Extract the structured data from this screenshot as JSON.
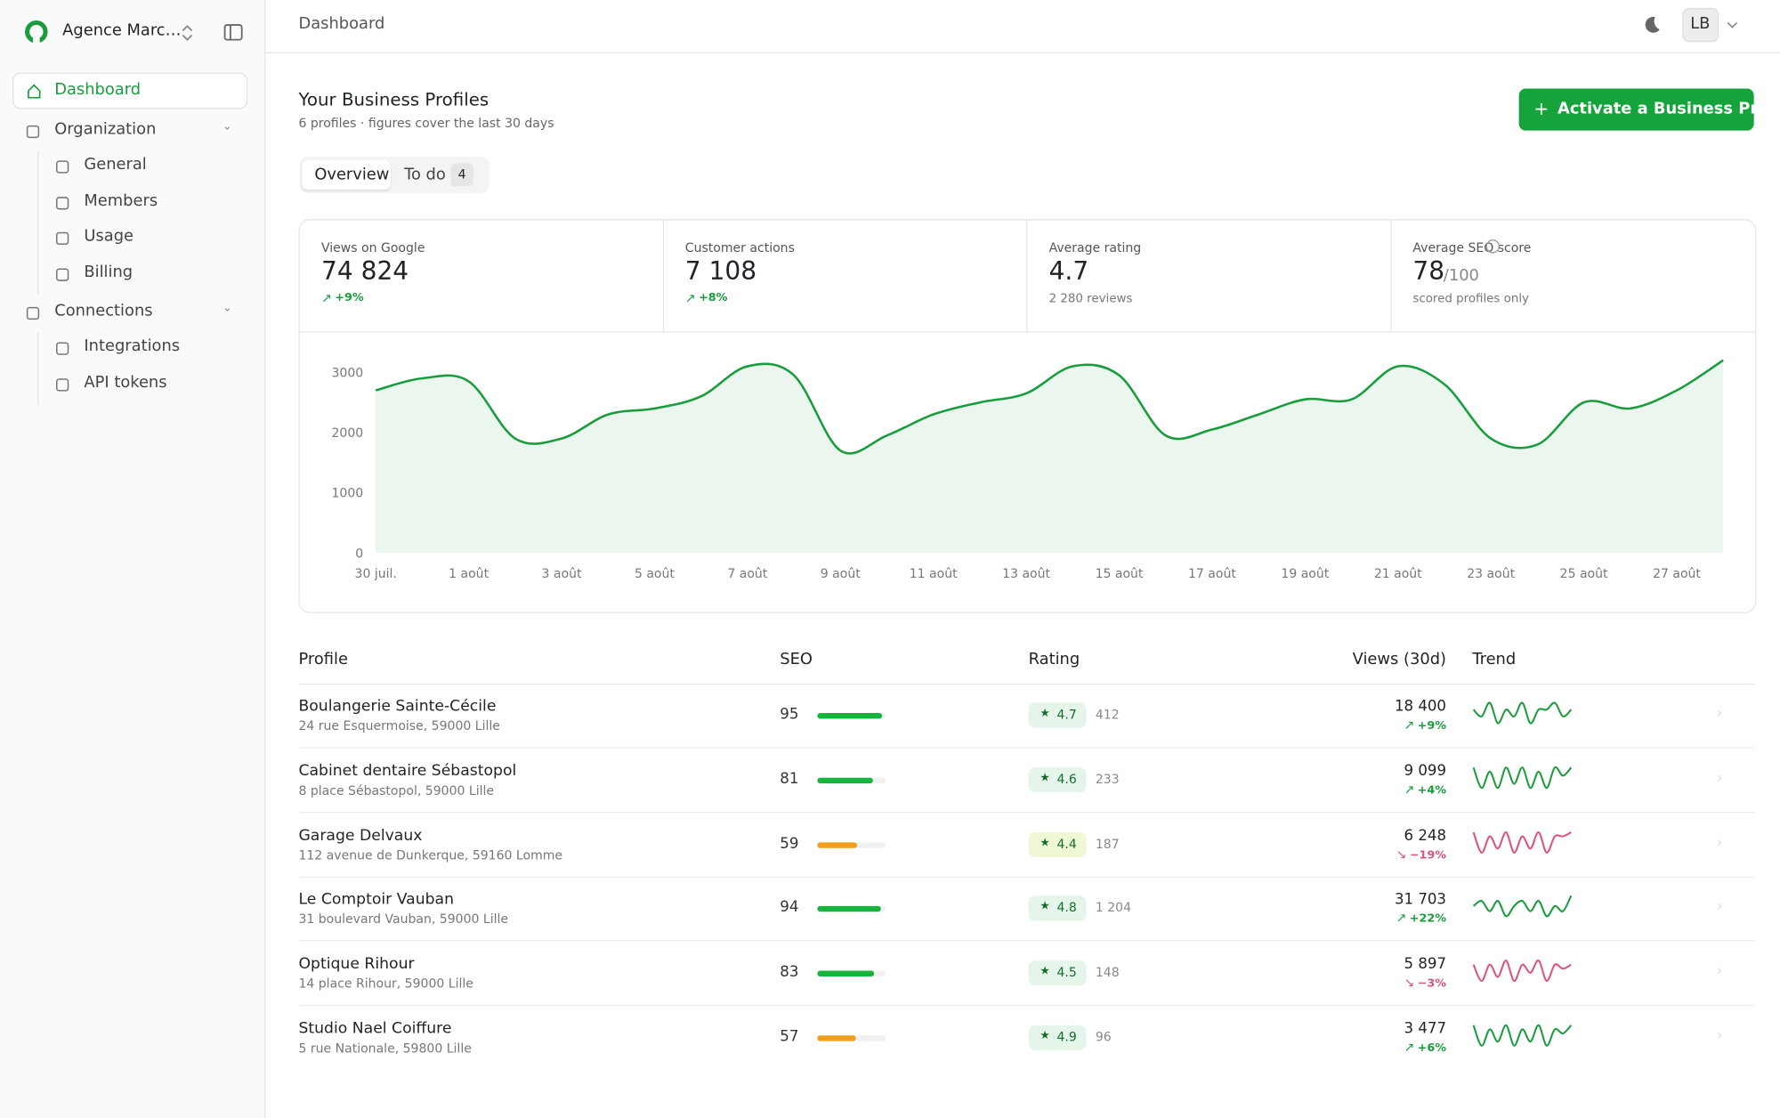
{
  "sidebar": {
    "workspace": "Agence Marc…",
    "dashboard": "Dashboard",
    "groups": [
      {
        "label": "Organization",
        "items": [
          "General",
          "Members",
          "Usage",
          "Billing"
        ]
      },
      {
        "label": "Connections",
        "items": [
          "Integrations",
          "API tokens"
        ]
      }
    ]
  },
  "header": {
    "breadcrumb": "Dashboard",
    "avatar": "LB"
  },
  "page": {
    "title": "Your Business Profiles",
    "subtitle": "6 profiles · figures cover the last 30 days",
    "button": "Activate a Business Profile",
    "tabs": [
      {
        "label": "Overview"
      },
      {
        "label": "To do",
        "badge": 4
      }
    ]
  },
  "stats": [
    {
      "label": "Views on Google",
      "value": "74 824",
      "change": "+9%",
      "trend": "up"
    },
    {
      "label": "Customer actions",
      "value": "7 108",
      "change": "+8%",
      "trend": "up"
    },
    {
      "label": "Average rating",
      "value": "4.7",
      "sub": "2 280 reviews"
    },
    {
      "label": "Average SEO score",
      "value": "78",
      "suffix": "/100",
      "sub": "scored profiles only"
    }
  ],
  "chart_data": {
    "type": "line",
    "color": "#1a9c3e",
    "categories": [
      "30 juil.",
      null,
      "1 août",
      null,
      "3 août",
      null,
      "5 août",
      null,
      "7 août",
      null,
      "9 août",
      null,
      "11 août",
      null,
      "13 août",
      null,
      "15 août",
      null,
      "17 août",
      null,
      "19 août",
      null,
      "21 août",
      null,
      "23 août",
      null,
      "25 août",
      null,
      "27 août",
      null
    ],
    "values": [
      2700,
      2900,
      2850,
      1900,
      1900,
      2300,
      2400,
      2600,
      3100,
      2950,
      1700,
      1950,
      2300,
      2500,
      2650,
      3100,
      2950,
      1950,
      2050,
      2300,
      2550,
      2550,
      3100,
      2800,
      1900,
      1800,
      2500,
      2400,
      2700,
      3200
    ],
    "ylim": [
      0,
      3300
    ],
    "yticks": [
      0,
      1000,
      2000,
      3000
    ]
  },
  "table": {
    "columns": [
      "Profile",
      "SEO",
      "Rating",
      "Views (30d)",
      "Trend"
    ],
    "rows": [
      {
        "name": "Boulangerie Sainte-Cécile",
        "address": "24 rue Esquermoise, 59000 Lille",
        "seo": 95,
        "seo_color": "#16b43c",
        "rating": "4.7",
        "badge_color": "#e6f5ea",
        "reviews": "412",
        "views": "18 400",
        "change": "+9%",
        "trend": "up",
        "color": "#1a9c3e",
        "spark": [
          5,
          4,
          6,
          3,
          5,
          4,
          6,
          3,
          5,
          5,
          6,
          4,
          5
        ]
      },
      {
        "name": "Cabinet dentaire Sébastopol",
        "address": "8 place Sébastopol, 59000 Lille",
        "seo": 81,
        "seo_color": "#16b43c",
        "rating": "4.6",
        "badge_color": "#e6f5ea",
        "reviews": "233",
        "views": "9 099",
        "change": "+4%",
        "trend": "up",
        "color": "#1a9c3e",
        "spark": [
          6,
          1,
          5,
          1,
          6,
          2,
          6,
          1,
          5,
          1,
          6,
          4,
          6
        ]
      },
      {
        "name": "Garage Delvaux",
        "address": "112 avenue de Dunkerque, 59160 Lomme",
        "seo": 59,
        "seo_color": "#f0a01a",
        "rating": "4.4",
        "badge_color": "#eef8d6",
        "reviews": "187",
        "views": "6 248",
        "change": "−19%",
        "trend": "down",
        "color": "#d9557a",
        "spark": [
          6,
          1,
          5,
          2,
          6,
          1,
          5,
          2,
          6,
          1,
          5,
          5,
          6
        ]
      },
      {
        "name": "Le Comptoir Vauban",
        "address": "31 boulevard Vauban, 59000 Lille",
        "seo": 94,
        "seo_color": "#16b43c",
        "rating": "4.8",
        "badge_color": "#e6f5ea",
        "reviews": "1 204",
        "views": "31 703",
        "change": "+22%",
        "trend": "up",
        "color": "#1a9c3e",
        "spark": [
          4,
          5,
          3,
          5,
          2,
          4,
          5,
          3,
          5,
          2,
          4,
          3,
          6
        ]
      },
      {
        "name": "Optique Rihour",
        "address": "14 place Rihour, 59000 Lille",
        "seo": 83,
        "seo_color": "#16b43c",
        "rating": "4.5",
        "badge_color": "#e6f5ea",
        "reviews": "148",
        "views": "5 897",
        "change": "−3%",
        "trend": "down",
        "color": "#d9557a",
        "spark": [
          5,
          1,
          5,
          2,
          6,
          1,
          5,
          3,
          6,
          1,
          5,
          4,
          5
        ]
      },
      {
        "name": "Studio Nael Coiffure",
        "address": "5 rue Nationale, 59800 Lille",
        "seo": 57,
        "seo_color": "#f0a01a",
        "rating": "4.9",
        "badge_color": "#e6f5ea",
        "reviews": "96",
        "views": "3 477",
        "change": "+6%",
        "trend": "up",
        "color": "#1a9c3e",
        "spark": [
          6,
          1,
          5,
          2,
          6,
          1,
          5,
          2,
          6,
          1,
          5,
          4,
          6
        ]
      }
    ]
  }
}
